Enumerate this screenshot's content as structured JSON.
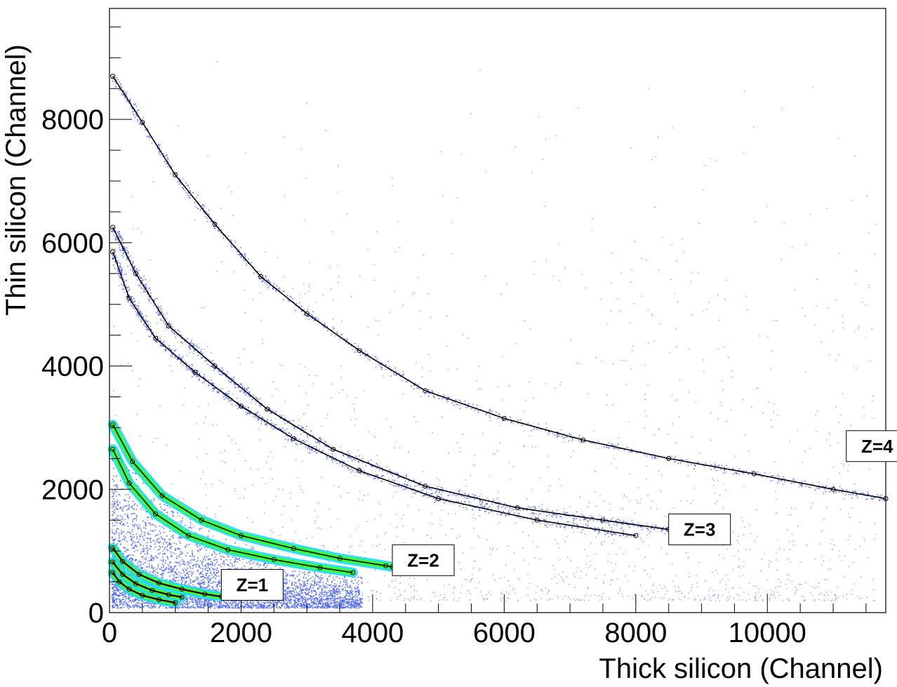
{
  "chart_data": {
    "type": "scatter",
    "title": "",
    "xlabel": "Thick silicon (Channel)",
    "ylabel": "Thin silicon (Channel)",
    "xlim": [
      0,
      11800
    ],
    "ylim": [
      0,
      9800
    ],
    "x_ticks": [
      0,
      2000,
      4000,
      6000,
      8000,
      10000
    ],
    "y_ticks": [
      0,
      2000,
      4000,
      6000,
      8000
    ],
    "grid": false,
    "legend": "none",
    "colors": {
      "density_low": "#1a3cff",
      "density_mid": "#20d8ff",
      "density_high": "#39ff39",
      "line": "#000000",
      "fit_core": "#c0001a"
    },
    "series": [
      {
        "name": "Z=1",
        "values": [
          [
            50,
            650
          ],
          [
            150,
            500
          ],
          [
            300,
            380
          ],
          [
            500,
            280
          ],
          [
            750,
            210
          ],
          [
            1000,
            160
          ]
        ]
      },
      {
        "name": "Z=1",
        "values": [
          [
            50,
            820
          ],
          [
            200,
            620
          ],
          [
            400,
            470
          ],
          [
            650,
            360
          ],
          [
            900,
            290
          ],
          [
            1100,
            250
          ]
        ]
      },
      {
        "name": "Z=1",
        "values": [
          [
            50,
            1050
          ],
          [
            200,
            830
          ],
          [
            450,
            620
          ],
          [
            750,
            480
          ],
          [
            1100,
            380
          ],
          [
            1450,
            300
          ],
          [
            1700,
            260
          ]
        ]
      },
      {
        "name": "Z=2",
        "values": [
          [
            50,
            2650
          ],
          [
            300,
            2100
          ],
          [
            700,
            1600
          ],
          [
            1200,
            1250
          ],
          [
            1800,
            1020
          ],
          [
            2500,
            860
          ],
          [
            3200,
            730
          ],
          [
            3700,
            650
          ]
        ]
      },
      {
        "name": "Z=2",
        "values": [
          [
            50,
            3050
          ],
          [
            350,
            2450
          ],
          [
            800,
            1900
          ],
          [
            1400,
            1500
          ],
          [
            2000,
            1250
          ],
          [
            2800,
            1040
          ],
          [
            3500,
            880
          ],
          [
            4200,
            760
          ],
          [
            4300,
            740
          ]
        ]
      },
      {
        "name": "Z=3",
        "values": [
          [
            50,
            5850
          ],
          [
            300,
            5100
          ],
          [
            700,
            4450
          ],
          [
            1300,
            3900
          ],
          [
            2000,
            3350
          ],
          [
            2800,
            2820
          ],
          [
            3800,
            2300
          ],
          [
            5000,
            1850
          ],
          [
            6500,
            1500
          ],
          [
            8000,
            1250
          ]
        ]
      },
      {
        "name": "Z=3",
        "values": [
          [
            50,
            6250
          ],
          [
            400,
            5500
          ],
          [
            900,
            4650
          ],
          [
            1600,
            4000
          ],
          [
            2400,
            3300
          ],
          [
            3400,
            2650
          ],
          [
            4800,
            2050
          ],
          [
            6200,
            1700
          ],
          [
            7500,
            1500
          ],
          [
            8500,
            1350
          ]
        ]
      },
      {
        "name": "Z=4",
        "values": [
          [
            50,
            8700
          ],
          [
            500,
            7950
          ],
          [
            1000,
            7100
          ],
          [
            1600,
            6300
          ],
          [
            2300,
            5450
          ],
          [
            3000,
            4850
          ],
          [
            3800,
            4250
          ],
          [
            4800,
            3600
          ],
          [
            6000,
            3150
          ],
          [
            7200,
            2800
          ],
          [
            8500,
            2500
          ],
          [
            9800,
            2250
          ],
          [
            11000,
            2000
          ],
          [
            11800,
            1850
          ]
        ]
      }
    ],
    "annotations": [
      {
        "text": "Z=1",
        "x": 1700,
        "y": 200
      },
      {
        "text": "Z=2",
        "x": 4300,
        "y": 600
      },
      {
        "text": "Z=3",
        "x": 8500,
        "y": 1100
      },
      {
        "text": "Z=4",
        "x": 11200,
        "y": 2450
      }
    ]
  }
}
